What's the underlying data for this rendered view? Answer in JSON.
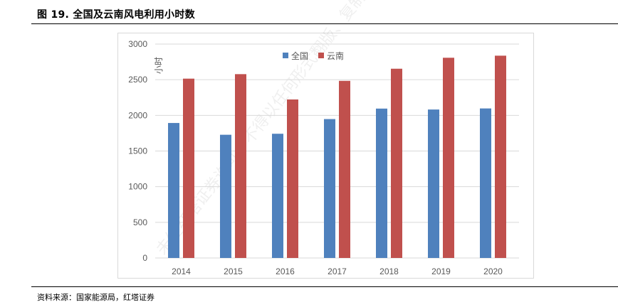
{
  "header": {
    "title": "图 19. 全国及云南风电利用小时数"
  },
  "footer": {
    "source": "资料来源：国家能源局，红塔证券"
  },
  "watermark": {
    "text": "未经红塔证券许可，不得以任何形式翻版、复制"
  },
  "colors": {
    "series1": "#4f81bd",
    "series2": "#c0504d",
    "grid": "#d9d9d9"
  },
  "chart_data": {
    "type": "bar",
    "title": "",
    "xlabel": "",
    "ylabel": "小时",
    "ylim": [
      0,
      3000
    ],
    "yticks": [
      0,
      500,
      1000,
      1500,
      2000,
      2500,
      3000
    ],
    "grid": true,
    "legend_position": "top-right",
    "categories": [
      "2014",
      "2015",
      "2016",
      "2017",
      "2018",
      "2019",
      "2020"
    ],
    "series": [
      {
        "name": "全国",
        "values": [
          1893,
          1728,
          1742,
          1948,
          2095,
          2082,
          2097
        ]
      },
      {
        "name": "云南",
        "values": [
          2515,
          2578,
          2223,
          2484,
          2654,
          2808,
          2837
        ]
      }
    ]
  }
}
